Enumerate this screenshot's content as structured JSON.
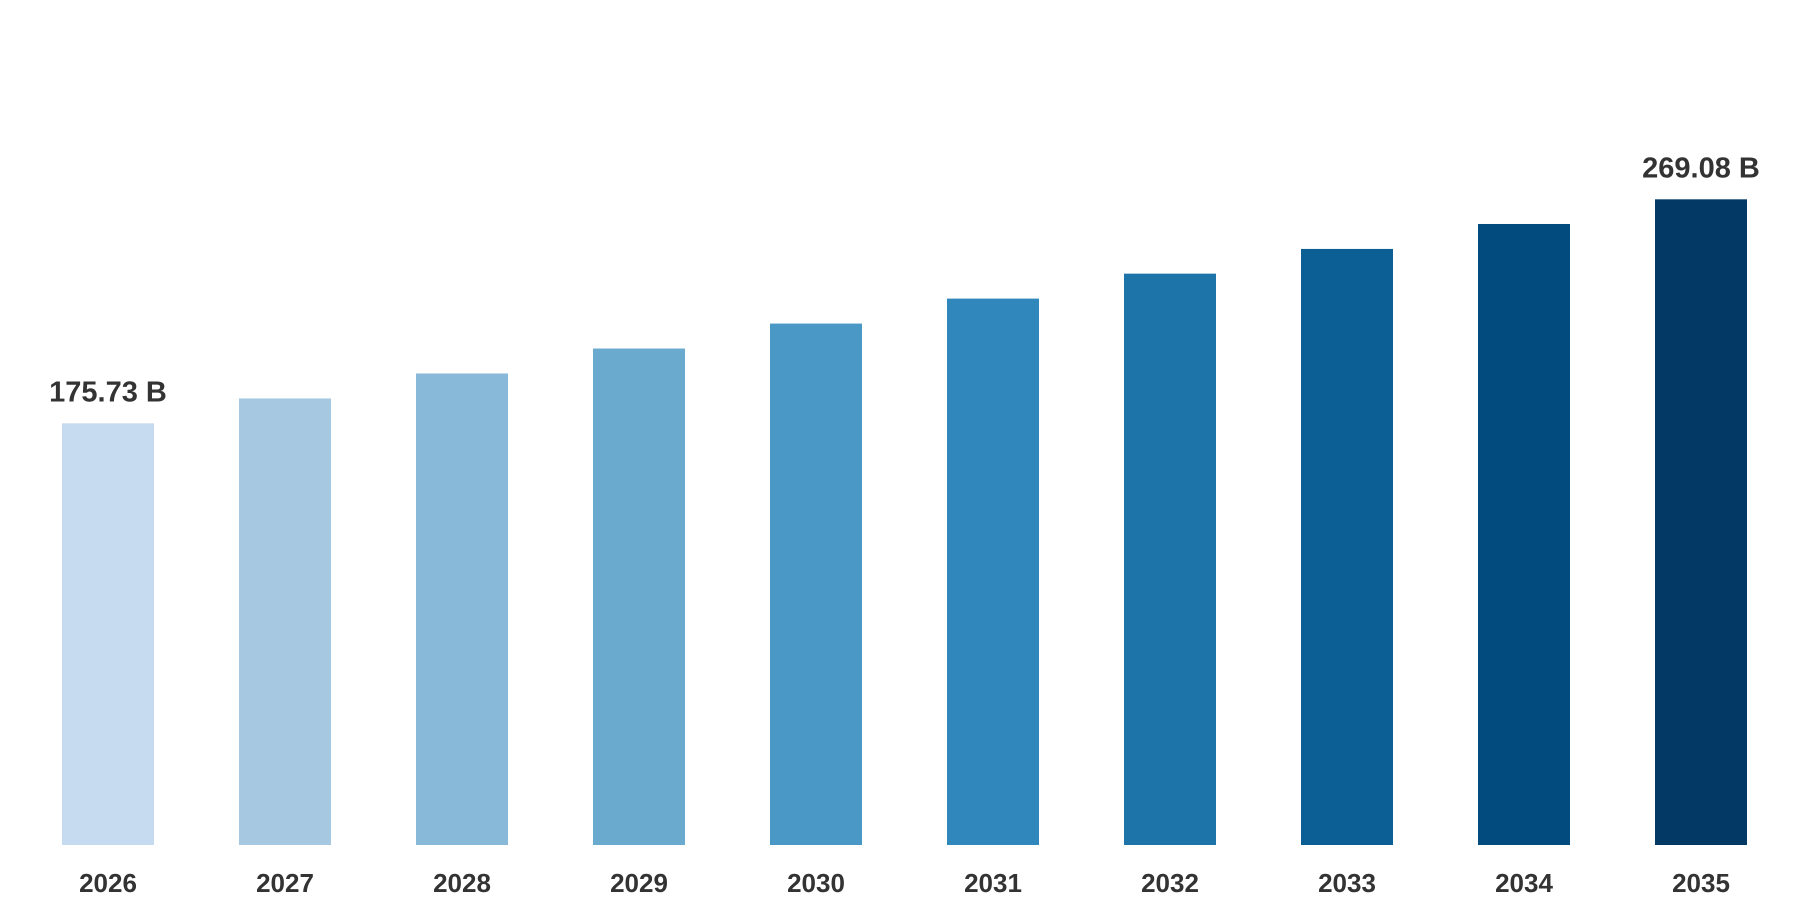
{
  "chart_data": {
    "type": "bar",
    "categories": [
      "2026",
      "2027",
      "2028",
      "2029",
      "2030",
      "2031",
      "2032",
      "2033",
      "2034",
      "2035"
    ],
    "values": [
      175.73,
      186.1,
      196.5,
      206.9,
      217.3,
      227.7,
      238.1,
      248.4,
      258.8,
      269.08
    ],
    "data_labels": [
      {
        "category": "2026",
        "text": "175.73 B"
      },
      {
        "category": "2035",
        "text": "269.08 B"
      }
    ],
    "bar_colors": [
      "#c6dbef",
      "#a6c8e1",
      "#89b9d9",
      "#6aaacf",
      "#4a98c6",
      "#3087bc",
      "#1c74a8",
      "#0b5f94",
      "#024b7e",
      "#023a65"
    ],
    "title": "",
    "xlabel": "",
    "ylabel": "",
    "ylim": [
      0,
      300
    ],
    "grid": false,
    "legend": "none"
  }
}
